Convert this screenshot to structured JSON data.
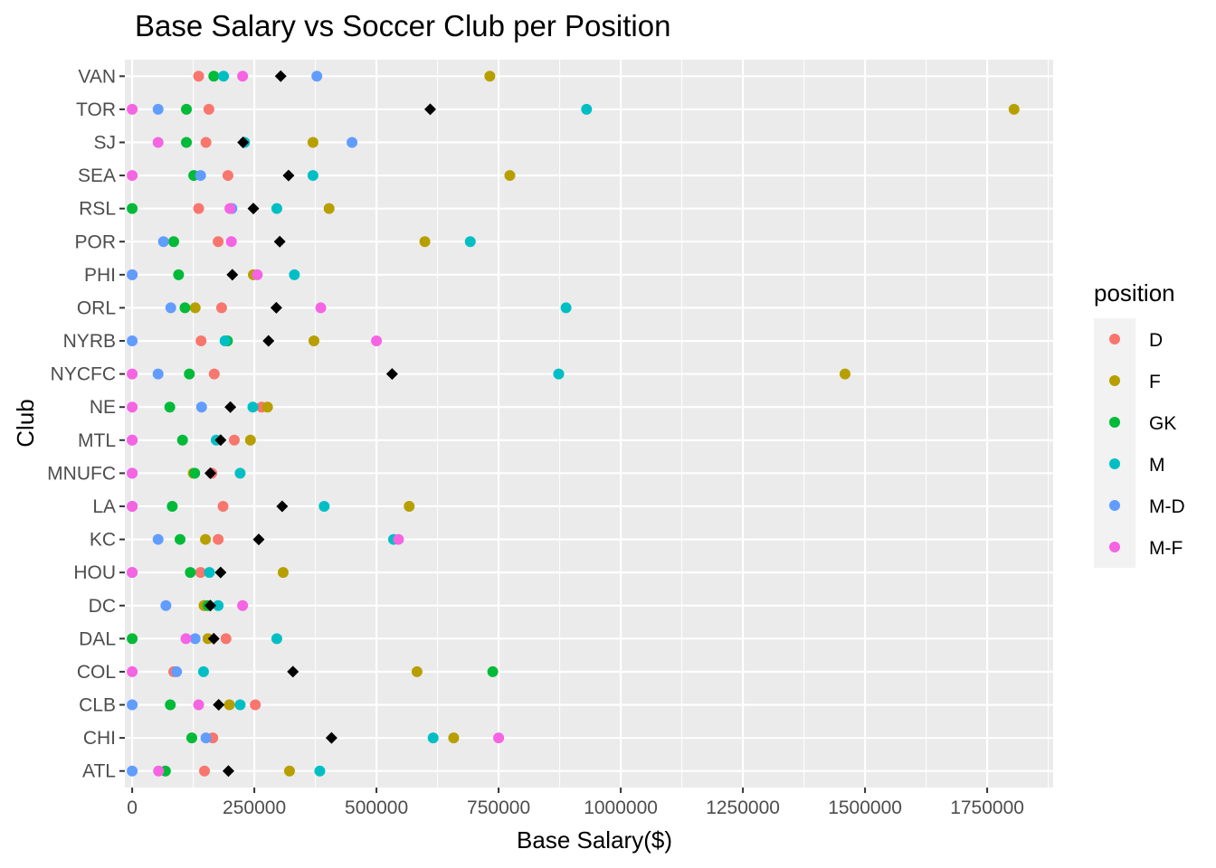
{
  "chart_data": {
    "type": "scatter",
    "title": "Base Salary vs Soccer Club per Position",
    "xlabel": "Base Salary($)",
    "ylabel": "Club",
    "xlim": [
      -15000,
      1885000
    ],
    "x_ticks": [
      0,
      250000,
      500000,
      750000,
      1000000,
      1250000,
      1500000,
      1750000
    ],
    "categories": [
      "ATL",
      "CHI",
      "CLB",
      "COL",
      "DAL",
      "DC",
      "HOU",
      "KC",
      "LA",
      "MNUFC",
      "MTL",
      "NE",
      "NYCFC",
      "NYRB",
      "ORL",
      "PHI",
      "POR",
      "RSL",
      "SEA",
      "SJ",
      "TOR",
      "VAN"
    ],
    "grid": true,
    "legend_position": "right",
    "legend_title": "position",
    "series": [
      {
        "name": "D",
        "color": "#F8766D",
        "values": [
          [
            "ATL",
            148000
          ],
          [
            "CHI",
            165000
          ],
          [
            "CLB",
            252000
          ],
          [
            "COL",
            85000
          ],
          [
            "DAL",
            192000
          ],
          [
            "DC",
            148000
          ],
          [
            "HOU",
            140000
          ],
          [
            "KC",
            176000
          ],
          [
            "LA",
            186000
          ],
          [
            "MNUFC",
            163000
          ],
          [
            "MTL",
            209000
          ],
          [
            "NE",
            265000
          ],
          [
            "NYCFC",
            168000
          ],
          [
            "NYRB",
            141000
          ],
          [
            "ORL",
            183000
          ],
          [
            "PHI",
            0
          ],
          [
            "POR",
            176000
          ],
          [
            "RSL",
            136000
          ],
          [
            "SEA",
            196000
          ],
          [
            "SJ",
            151000
          ],
          [
            "TOR",
            157000
          ],
          [
            "VAN",
            136000
          ]
        ]
      },
      {
        "name": "F",
        "color": "#B79F00",
        "values": [
          [
            "ATL",
            322000
          ],
          [
            "CHI",
            658000
          ],
          [
            "CLB",
            199000
          ],
          [
            "COL",
            583000
          ],
          [
            "DAL",
            155000
          ],
          [
            "DC",
            147000
          ],
          [
            "HOU",
            309000
          ],
          [
            "KC",
            150000
          ],
          [
            "LA",
            567000
          ],
          [
            "MNUFC",
            125000
          ],
          [
            "MTL",
            242000
          ],
          [
            "NE",
            277000
          ],
          [
            "NYCFC",
            1459000
          ],
          [
            "NYRB",
            372000
          ],
          [
            "ORL",
            129000
          ],
          [
            "PHI",
            248000
          ],
          [
            "POR",
            599000
          ],
          [
            "RSL",
            403000
          ],
          [
            "SEA",
            773000
          ],
          [
            "SJ",
            370000
          ],
          [
            "TOR",
            1805000
          ],
          [
            "VAN",
            732000
          ]
        ]
      },
      {
        "name": "GK",
        "color": "#00BA38",
        "values": [
          [
            "ATL",
            68000
          ],
          [
            "CHI",
            122000
          ],
          [
            "CLB",
            78000
          ],
          [
            "COL",
            738000
          ],
          [
            "DAL",
            0
          ],
          [
            "DC",
            155000
          ],
          [
            "HOU",
            119000
          ],
          [
            "KC",
            98000
          ],
          [
            "LA",
            82000
          ],
          [
            "MNUFC",
            128000
          ],
          [
            "MTL",
            103000
          ],
          [
            "NE",
            77000
          ],
          [
            "NYCFC",
            117000
          ],
          [
            "NYRB",
            195000
          ],
          [
            "ORL",
            108000
          ],
          [
            "PHI",
            95000
          ],
          [
            "POR",
            85000
          ],
          [
            "RSL",
            0
          ],
          [
            "SEA",
            126000
          ],
          [
            "SJ",
            111000
          ],
          [
            "TOR",
            111000
          ],
          [
            "VAN",
            167000
          ]
        ]
      },
      {
        "name": "M",
        "color": "#00BFC4",
        "values": [
          [
            "ATL",
            384000
          ],
          [
            "CHI",
            616000
          ],
          [
            "CLB",
            221000
          ],
          [
            "COL",
            146000
          ],
          [
            "DAL",
            296000
          ],
          [
            "DC",
            176000
          ],
          [
            "HOU",
            158000
          ],
          [
            "KC",
            535000
          ],
          [
            "LA",
            393000
          ],
          [
            "MNUFC",
            221000
          ],
          [
            "MTL",
            172000
          ],
          [
            "NE",
            247000
          ],
          [
            "NYCFC",
            873000
          ],
          [
            "NYRB",
            190000
          ],
          [
            "ORL",
            888000
          ],
          [
            "PHI",
            332000
          ],
          [
            "POR",
            692000
          ],
          [
            "RSL",
            296000
          ],
          [
            "SEA",
            370000
          ],
          [
            "SJ",
            230000
          ],
          [
            "TOR",
            930000
          ],
          [
            "VAN",
            187000
          ]
        ]
      },
      {
        "name": "M-D",
        "color": "#619CFF",
        "values": [
          [
            "ATL",
            0
          ],
          [
            "CHI",
            151000
          ],
          [
            "CLB",
            0
          ],
          [
            "COL",
            91000
          ],
          [
            "DAL",
            129000
          ],
          [
            "DC",
            69000
          ],
          [
            "HOU",
            0
          ],
          [
            "KC",
            53000
          ],
          [
            "LA",
            0
          ],
          [
            "MNUFC",
            0
          ],
          [
            "MTL",
            0
          ],
          [
            "NE",
            142000
          ],
          [
            "NYCFC",
            53000
          ],
          [
            "NYRB",
            0
          ],
          [
            "ORL",
            79000
          ],
          [
            "PHI",
            0
          ],
          [
            "POR",
            64000
          ],
          [
            "RSL",
            204000
          ],
          [
            "SEA",
            140000
          ],
          [
            "SJ",
            450000
          ],
          [
            "TOR",
            53000
          ],
          [
            "VAN",
            378000
          ]
        ]
      },
      {
        "name": "M-F",
        "color": "#F564E3",
        "values": [
          [
            "ATL",
            54000
          ],
          [
            "CHI",
            750000
          ],
          [
            "CLB",
            136000
          ],
          [
            "COL",
            0
          ],
          [
            "DAL",
            110000
          ],
          [
            "DC",
            226000
          ],
          [
            "HOU",
            0
          ],
          [
            "KC",
            545000
          ],
          [
            "LA",
            0
          ],
          [
            "MNUFC",
            0
          ],
          [
            "MTL",
            0
          ],
          [
            "NE",
            0
          ],
          [
            "NYCFC",
            0
          ],
          [
            "NYRB",
            500000
          ],
          [
            "ORL",
            386000
          ],
          [
            "PHI",
            256000
          ],
          [
            "POR",
            203000
          ],
          [
            "RSL",
            200000
          ],
          [
            "SEA",
            0
          ],
          [
            "SJ",
            53000
          ],
          [
            "TOR",
            0
          ],
          [
            "VAN",
            226000
          ]
        ]
      }
    ],
    "mean_marker": {
      "color": "#000000",
      "values": [
        [
          "ATL",
          197000
        ],
        [
          "CHI",
          408000
        ],
        [
          "CLB",
          177000
        ],
        [
          "COL",
          329000
        ],
        [
          "DAL",
          167000
        ],
        [
          "DC",
          160000
        ],
        [
          "HOU",
          181000
        ],
        [
          "KC",
          259000
        ],
        [
          "LA",
          307000
        ],
        [
          "MNUFC",
          160000
        ],
        [
          "MTL",
          181000
        ],
        [
          "NE",
          201000
        ],
        [
          "NYCFC",
          532000
        ],
        [
          "NYRB",
          279000
        ],
        [
          "ORL",
          295000
        ],
        [
          "PHI",
          205000
        ],
        [
          "POR",
          302000
        ],
        [
          "RSL",
          248000
        ],
        [
          "SEA",
          320000
        ],
        [
          "SJ",
          227000
        ],
        [
          "TOR",
          610000
        ],
        [
          "VAN",
          304000
        ]
      ]
    }
  }
}
